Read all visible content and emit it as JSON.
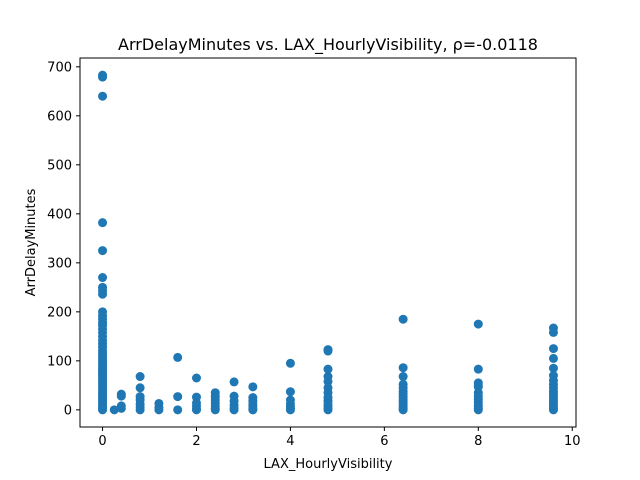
{
  "chart_data": {
    "type": "scatter",
    "title": "ArrDelayMinutes vs. LAX_HourlyVisibility, ρ=-0.0118",
    "xlabel": "LAX_HourlyVisibility",
    "ylabel": "ArrDelayMinutes",
    "xlim": [
      -0.48,
      10.08
    ],
    "ylim": [
      -35,
      718
    ],
    "xticks": [
      0,
      2,
      4,
      6,
      8,
      10
    ],
    "yticks": [
      0,
      100,
      200,
      300,
      400,
      500,
      600,
      700
    ],
    "grid": false,
    "marker_color": "#1f77b4",
    "series": [
      {
        "points": [
          [
            0,
            683
          ],
          [
            0,
            679
          ],
          [
            0,
            640
          ],
          [
            0,
            382
          ],
          [
            0,
            325
          ],
          [
            0,
            270
          ],
          [
            0,
            250
          ],
          [
            0,
            243
          ],
          [
            0,
            236
          ],
          [
            0,
            200
          ],
          [
            0,
            192
          ],
          [
            0,
            185
          ],
          [
            0,
            178
          ],
          [
            0,
            172
          ],
          [
            0,
            165
          ],
          [
            0,
            158
          ],
          [
            0,
            150
          ],
          [
            0,
            142
          ],
          [
            0,
            135
          ],
          [
            0,
            128
          ],
          [
            0,
            120
          ],
          [
            0,
            115
          ],
          [
            0,
            110
          ],
          [
            0,
            105
          ],
          [
            0,
            100
          ],
          [
            0,
            95
          ],
          [
            0,
            90
          ],
          [
            0,
            85
          ],
          [
            0,
            80
          ],
          [
            0,
            75
          ],
          [
            0,
            70
          ],
          [
            0,
            65
          ],
          [
            0,
            60
          ],
          [
            0,
            55
          ],
          [
            0,
            50
          ],
          [
            0,
            45
          ],
          [
            0,
            40
          ],
          [
            0,
            35
          ],
          [
            0,
            30
          ],
          [
            0,
            25
          ],
          [
            0,
            20
          ],
          [
            0,
            15
          ],
          [
            0,
            10
          ],
          [
            0,
            6
          ],
          [
            0,
            3
          ],
          [
            0,
            0
          ],
          [
            0.25,
            0
          ],
          [
            0.4,
            32
          ],
          [
            0.4,
            28
          ],
          [
            0.4,
            8
          ],
          [
            0.4,
            3
          ],
          [
            0.8,
            68
          ],
          [
            0.8,
            45
          ],
          [
            0.8,
            27
          ],
          [
            0.8,
            20
          ],
          [
            0.8,
            12
          ],
          [
            0.8,
            6
          ],
          [
            0.8,
            0
          ],
          [
            1.2,
            13
          ],
          [
            1.2,
            5
          ],
          [
            1.2,
            0
          ],
          [
            1.6,
            107
          ],
          [
            1.6,
            27
          ],
          [
            1.6,
            0
          ],
          [
            2.0,
            65
          ],
          [
            2.0,
            26
          ],
          [
            2.0,
            14
          ],
          [
            2.0,
            8
          ],
          [
            2.0,
            2
          ],
          [
            2.0,
            0
          ],
          [
            2.4,
            35
          ],
          [
            2.4,
            27
          ],
          [
            2.4,
            20
          ],
          [
            2.4,
            14
          ],
          [
            2.4,
            8
          ],
          [
            2.4,
            3
          ],
          [
            2.4,
            0
          ],
          [
            2.8,
            57
          ],
          [
            2.8,
            28
          ],
          [
            2.8,
            18
          ],
          [
            2.8,
            10
          ],
          [
            2.8,
            4
          ],
          [
            2.8,
            0
          ],
          [
            3.2,
            47
          ],
          [
            3.2,
            25
          ],
          [
            3.2,
            18
          ],
          [
            3.2,
            12
          ],
          [
            3.2,
            7
          ],
          [
            3.2,
            3
          ],
          [
            3.2,
            0
          ],
          [
            4.0,
            95
          ],
          [
            4.0,
            37
          ],
          [
            4.0,
            20
          ],
          [
            4.0,
            12
          ],
          [
            4.0,
            7
          ],
          [
            4.0,
            3
          ],
          [
            4.0,
            0
          ],
          [
            4.8,
            123
          ],
          [
            4.8,
            120
          ],
          [
            4.8,
            83
          ],
          [
            4.8,
            68
          ],
          [
            4.8,
            58
          ],
          [
            4.8,
            45
          ],
          [
            4.8,
            35
          ],
          [
            4.8,
            25
          ],
          [
            4.8,
            18
          ],
          [
            4.8,
            12
          ],
          [
            4.8,
            7
          ],
          [
            4.8,
            3
          ],
          [
            4.8,
            0
          ],
          [
            6.4,
            185
          ],
          [
            6.4,
            86
          ],
          [
            6.4,
            68
          ],
          [
            6.4,
            52
          ],
          [
            6.4,
            45
          ],
          [
            6.4,
            38
          ],
          [
            6.4,
            32
          ],
          [
            6.4,
            26
          ],
          [
            6.4,
            20
          ],
          [
            6.4,
            15
          ],
          [
            6.4,
            10
          ],
          [
            6.4,
            6
          ],
          [
            6.4,
            3
          ],
          [
            6.4,
            0
          ],
          [
            8.0,
            175
          ],
          [
            8.0,
            83
          ],
          [
            8.0,
            55
          ],
          [
            8.0,
            50
          ],
          [
            8.0,
            47
          ],
          [
            8.0,
            35
          ],
          [
            8.0,
            28
          ],
          [
            8.0,
            22
          ],
          [
            8.0,
            16
          ],
          [
            8.0,
            11
          ],
          [
            8.0,
            7
          ],
          [
            8.0,
            3
          ],
          [
            8.0,
            0
          ],
          [
            9.6,
            167
          ],
          [
            9.6,
            158
          ],
          [
            9.6,
            125
          ],
          [
            9.6,
            105
          ],
          [
            9.6,
            85
          ],
          [
            9.6,
            70
          ],
          [
            9.6,
            60
          ],
          [
            9.6,
            52
          ],
          [
            9.6,
            45
          ],
          [
            9.6,
            38
          ],
          [
            9.6,
            32
          ],
          [
            9.6,
            26
          ],
          [
            9.6,
            20
          ],
          [
            9.6,
            15
          ],
          [
            9.6,
            10
          ],
          [
            9.6,
            6
          ],
          [
            9.6,
            3
          ],
          [
            9.6,
            0
          ]
        ]
      }
    ]
  }
}
